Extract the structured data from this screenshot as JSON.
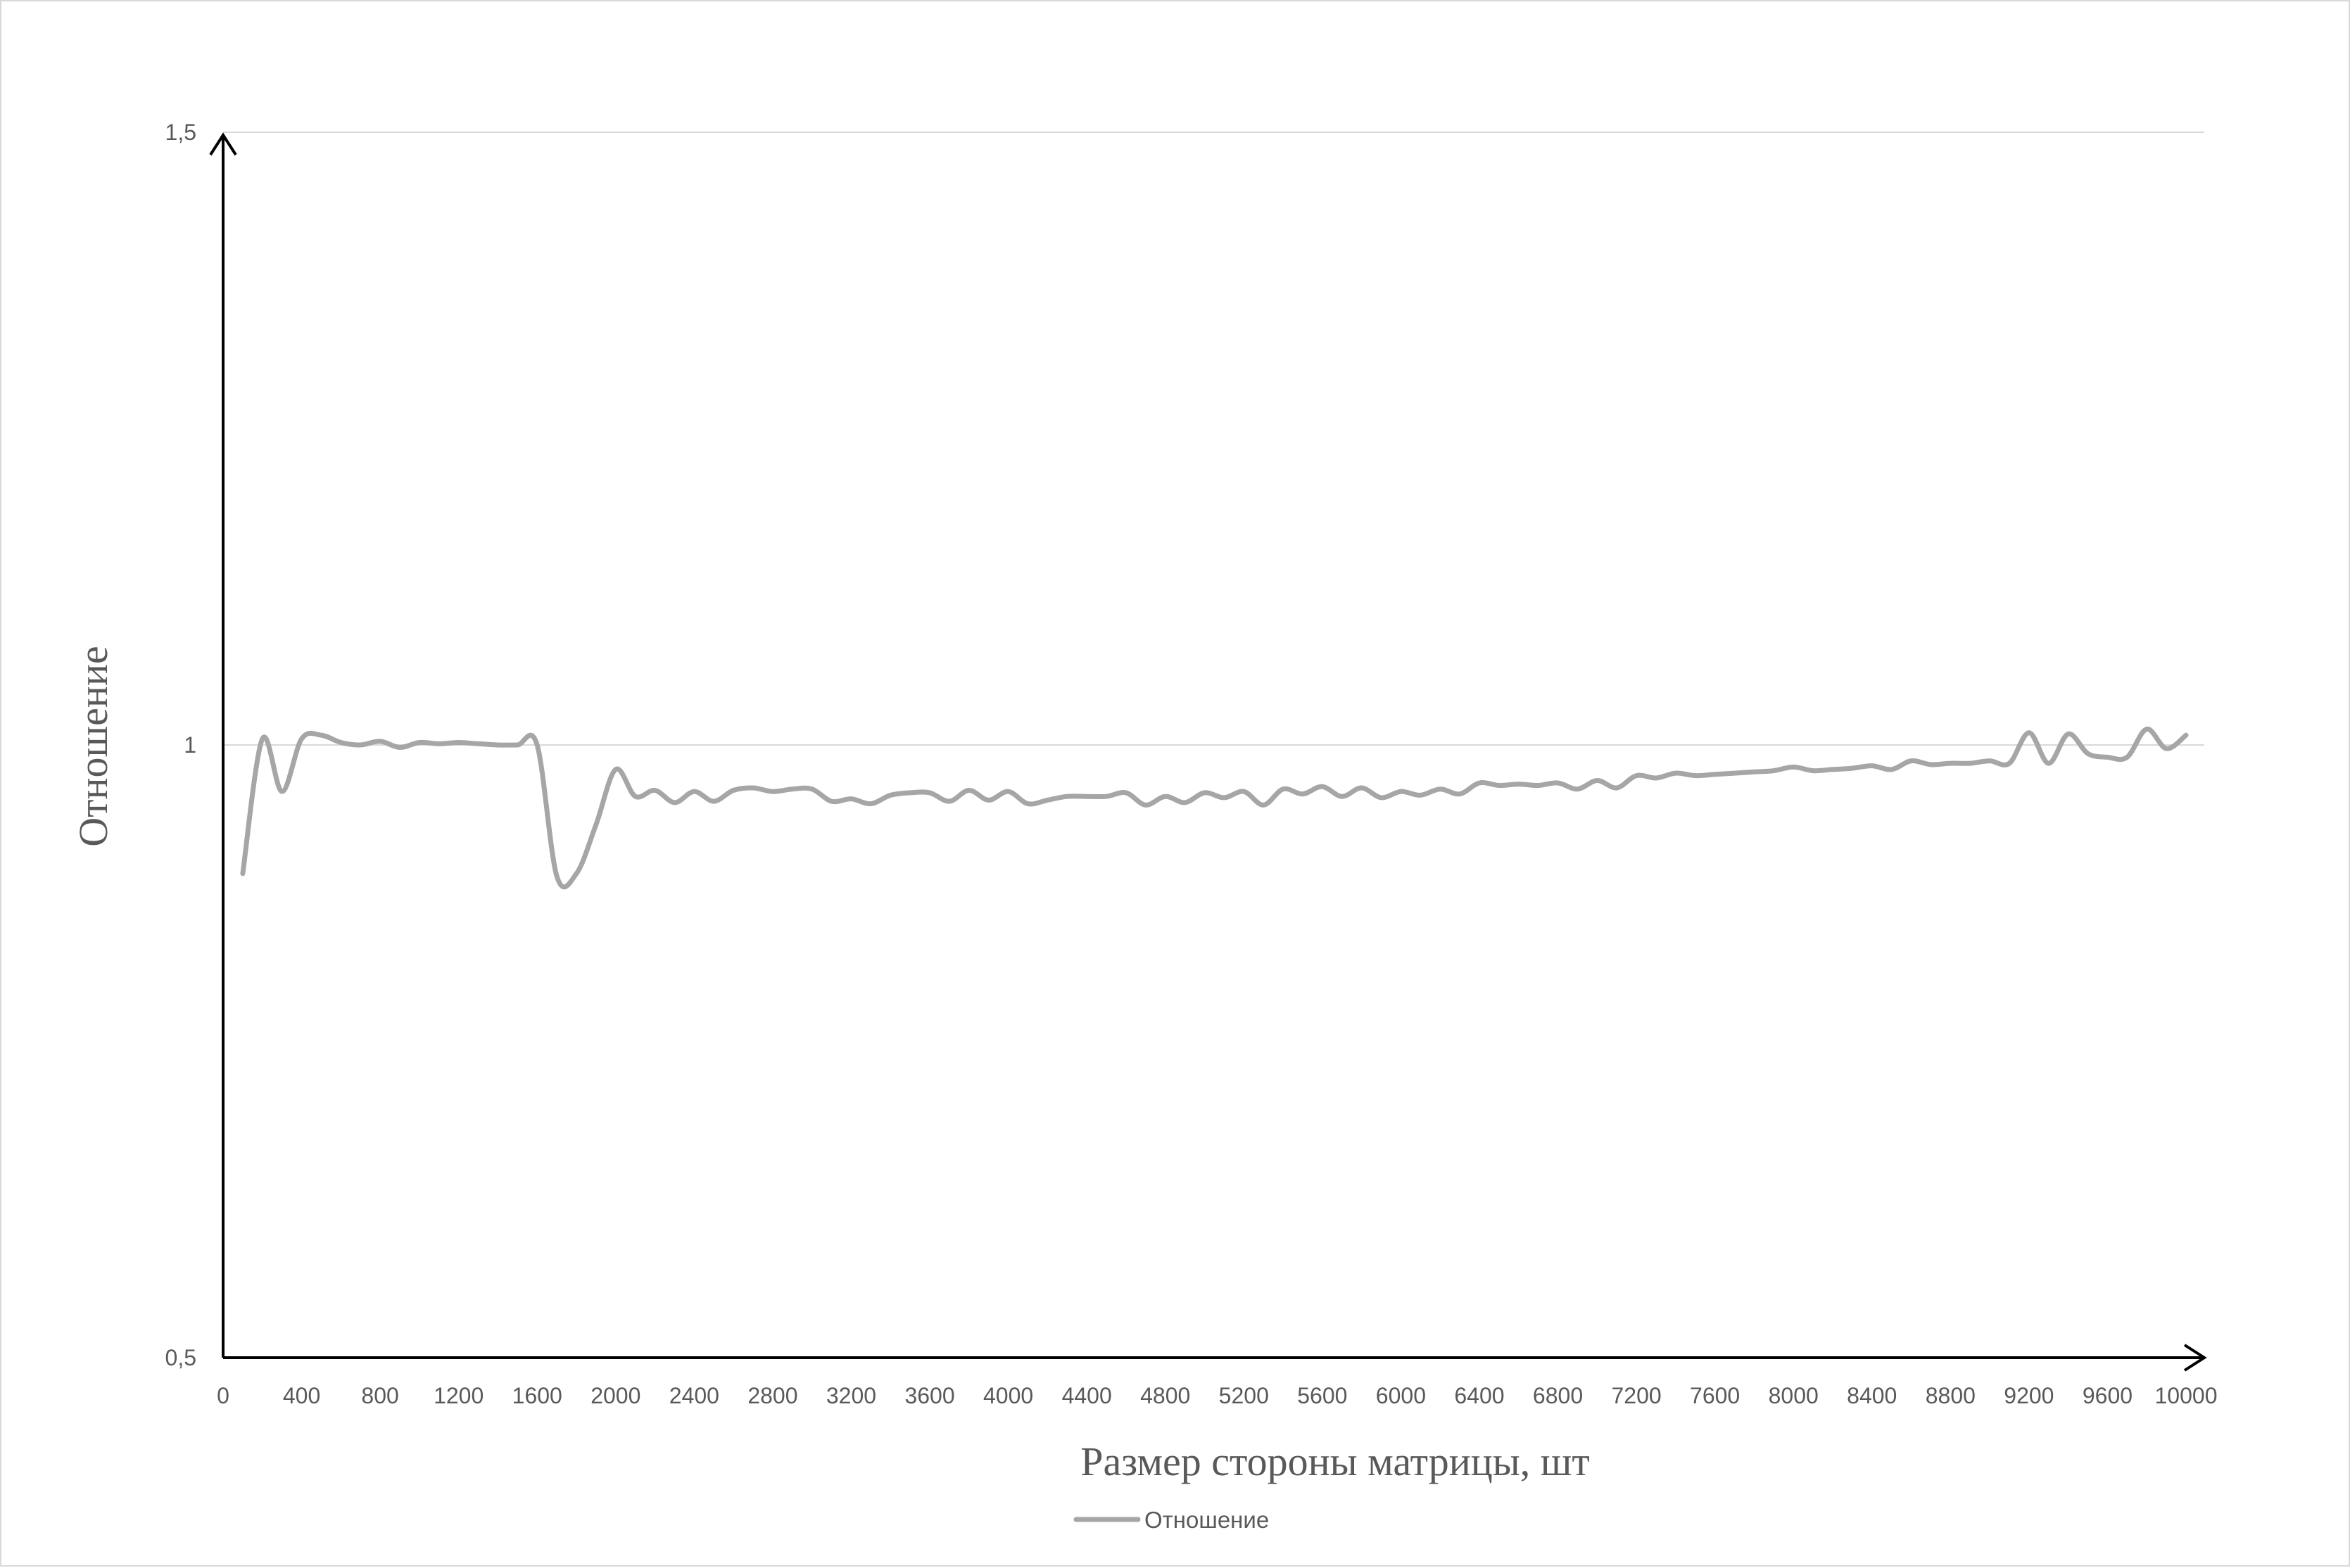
{
  "chart_data": {
    "type": "line",
    "xlabel": "Размер стороны матрицы, шт",
    "ylabel": "Отношение",
    "xlim": [
      0,
      10000
    ],
    "ylim": [
      0.5,
      1.5
    ],
    "x_ticks": [
      "0",
      "400",
      "800",
      "1200",
      "1600",
      "2000",
      "2400",
      "2800",
      "3200",
      "3600",
      "4000",
      "4400",
      "4800",
      "5200",
      "5600",
      "6000",
      "6400",
      "6800",
      "7200",
      "7600",
      "8000",
      "8400",
      "8800",
      "9200",
      "9600",
      "10000"
    ],
    "y_ticks": [
      "0,5",
      "1",
      "1,5"
    ],
    "grid": true,
    "legend": {
      "position": "bottom",
      "entries": [
        "Отношение"
      ]
    },
    "colors": {
      "series": "#a6a6a6",
      "axis": "#000000",
      "grid": "#d9d9d9",
      "text": "#595959"
    },
    "series": [
      {
        "name": "Отношение",
        "x": [
          100,
          200,
          300,
          400,
          500,
          600,
          700,
          800,
          900,
          1000,
          1100,
          1200,
          1300,
          1400,
          1500,
          1600,
          1700,
          1800,
          1900,
          2000,
          2100,
          2200,
          2300,
          2400,
          2500,
          2600,
          2700,
          2800,
          2900,
          3000,
          3100,
          3200,
          3300,
          3400,
          3500,
          3600,
          3700,
          3800,
          3900,
          4000,
          4100,
          4200,
          4300,
          4400,
          4500,
          4600,
          4700,
          4800,
          4900,
          5000,
          5100,
          5200,
          5300,
          5400,
          5500,
          5600,
          5700,
          5800,
          5900,
          6000,
          6100,
          6200,
          6300,
          6400,
          6500,
          6600,
          6700,
          6800,
          6900,
          7000,
          7100,
          7200,
          7300,
          7400,
          7500,
          7600,
          7700,
          7800,
          7900,
          8000,
          8100,
          8200,
          8300,
          8400,
          8500,
          8600,
          8700,
          8800,
          8900,
          9000,
          9100,
          9200,
          9300,
          9400,
          9500,
          9600,
          9700,
          9800,
          9900,
          10000
        ],
        "values": [
          0.895,
          1.005,
          0.962,
          1.005,
          1.008,
          1.002,
          1.0,
          1.003,
          0.998,
          1.002,
          1.001,
          1.002,
          1.001,
          1.0,
          1.0,
          1.0,
          0.893,
          0.895,
          0.935,
          0.98,
          0.958,
          0.963,
          0.953,
          0.962,
          0.954,
          0.963,
          0.965,
          0.962,
          0.964,
          0.964,
          0.954,
          0.956,
          0.952,
          0.959,
          0.961,
          0.961,
          0.954,
          0.963,
          0.955,
          0.962,
          0.952,
          0.955,
          0.958,
          0.958,
          0.958,
          0.961,
          0.951,
          0.958,
          0.953,
          0.961,
          0.957,
          0.962,
          0.951,
          0.964,
          0.96,
          0.966,
          0.958,
          0.965,
          0.957,
          0.962,
          0.959,
          0.964,
          0.96,
          0.969,
          0.967,
          0.968,
          0.967,
          0.969,
          0.964,
          0.971,
          0.965,
          0.975,
          0.973,
          0.977,
          0.975,
          0.976,
          0.977,
          0.978,
          0.979,
          0.982,
          0.979,
          0.98,
          0.981,
          0.983,
          0.98,
          0.987,
          0.984,
          0.985,
          0.985,
          0.987,
          0.985,
          1.01,
          0.985,
          1.009,
          0.993,
          0.99,
          0.99,
          1.013,
          0.997,
          1.008
        ]
      }
    ]
  }
}
